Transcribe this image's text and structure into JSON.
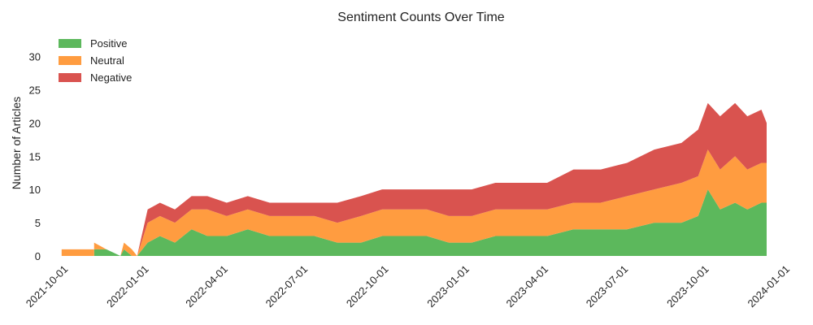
{
  "chart_data": {
    "type": "area",
    "stacked": true,
    "title": "Sentiment Counts Over Time",
    "xlabel": "",
    "ylabel": "Number of Articles",
    "x_range": [
      "2021-09-15",
      "2024-01-01"
    ],
    "ylim": [
      0,
      33
    ],
    "grid": false,
    "legend_position": "top-left",
    "x_ticks": [
      "2021-10-01",
      "2022-01-01",
      "2022-04-01",
      "2022-07-01",
      "2022-10-01",
      "2023-01-01",
      "2023-04-01",
      "2023-07-01",
      "2023-10-01",
      "2024-01-01"
    ],
    "y_ticks": [
      0,
      5,
      10,
      15,
      20,
      25,
      30
    ],
    "x_tick_rotation_deg": 45,
    "series": [
      {
        "name": "Positive",
        "color": "#5cb85c",
        "points": [
          [
            "2021-09-25",
            0
          ],
          [
            "2021-11-01",
            0
          ],
          [
            "2021-11-01",
            1
          ],
          [
            "2021-11-15",
            1
          ],
          [
            "2021-12-01",
            0
          ],
          [
            "2021-12-05",
            1
          ],
          [
            "2021-12-14",
            0
          ],
          [
            "2021-12-20",
            0
          ],
          [
            "2022-01-01",
            2
          ],
          [
            "2022-01-15",
            3
          ],
          [
            "2022-02-01",
            2
          ],
          [
            "2022-02-20",
            4
          ],
          [
            "2022-03-10",
            3
          ],
          [
            "2022-04-01",
            3
          ],
          [
            "2022-04-25",
            4
          ],
          [
            "2022-05-20",
            3
          ],
          [
            "2022-06-15",
            3
          ],
          [
            "2022-07-10",
            3
          ],
          [
            "2022-08-05",
            2
          ],
          [
            "2022-09-01",
            2
          ],
          [
            "2022-09-25",
            3
          ],
          [
            "2022-10-20",
            3
          ],
          [
            "2022-11-15",
            3
          ],
          [
            "2022-12-10",
            2
          ],
          [
            "2023-01-05",
            2
          ],
          [
            "2023-02-01",
            3
          ],
          [
            "2023-03-01",
            3
          ],
          [
            "2023-04-01",
            3
          ],
          [
            "2023-05-01",
            4
          ],
          [
            "2023-06-01",
            4
          ],
          [
            "2023-07-01",
            4
          ],
          [
            "2023-08-01",
            5
          ],
          [
            "2023-09-01",
            5
          ],
          [
            "2023-09-20",
            6
          ],
          [
            "2023-10-01",
            10
          ],
          [
            "2023-10-15",
            7
          ],
          [
            "2023-11-01",
            8
          ],
          [
            "2023-11-15",
            7
          ],
          [
            "2023-12-01",
            8
          ],
          [
            "2023-12-07",
            8
          ]
        ]
      },
      {
        "name": "Neutral",
        "color": "#ff9c40",
        "points": [
          [
            "2021-09-25",
            1
          ],
          [
            "2021-11-01",
            1
          ],
          [
            "2021-11-01",
            1
          ],
          [
            "2021-11-15",
            0
          ],
          [
            "2021-12-01",
            0
          ],
          [
            "2021-12-05",
            1
          ],
          [
            "2021-12-14",
            1
          ],
          [
            "2021-12-20",
            0
          ],
          [
            "2022-01-01",
            3
          ],
          [
            "2022-01-15",
            3
          ],
          [
            "2022-02-01",
            3
          ],
          [
            "2022-02-20",
            3
          ],
          [
            "2022-03-10",
            4
          ],
          [
            "2022-04-01",
            3
          ],
          [
            "2022-04-25",
            3
          ],
          [
            "2022-05-20",
            3
          ],
          [
            "2022-06-15",
            3
          ],
          [
            "2022-07-10",
            3
          ],
          [
            "2022-08-05",
            3
          ],
          [
            "2022-09-01",
            4
          ],
          [
            "2022-09-25",
            4
          ],
          [
            "2022-10-20",
            4
          ],
          [
            "2022-11-15",
            4
          ],
          [
            "2022-12-10",
            4
          ],
          [
            "2023-01-05",
            4
          ],
          [
            "2023-02-01",
            4
          ],
          [
            "2023-03-01",
            4
          ],
          [
            "2023-04-01",
            4
          ],
          [
            "2023-05-01",
            4
          ],
          [
            "2023-06-01",
            4
          ],
          [
            "2023-07-01",
            5
          ],
          [
            "2023-08-01",
            5
          ],
          [
            "2023-09-01",
            6
          ],
          [
            "2023-09-20",
            6
          ],
          [
            "2023-10-01",
            6
          ],
          [
            "2023-10-15",
            6
          ],
          [
            "2023-11-01",
            7
          ],
          [
            "2023-11-15",
            6
          ],
          [
            "2023-12-01",
            6
          ],
          [
            "2023-12-07",
            6
          ]
        ]
      },
      {
        "name": "Negative",
        "color": "#d9534f",
        "points": [
          [
            "2021-09-25",
            0
          ],
          [
            "2021-11-01",
            0
          ],
          [
            "2021-11-01",
            0
          ],
          [
            "2021-11-15",
            0
          ],
          [
            "2021-12-01",
            0
          ],
          [
            "2021-12-05",
            0
          ],
          [
            "2021-12-14",
            0
          ],
          [
            "2021-12-20",
            0
          ],
          [
            "2022-01-01",
            2
          ],
          [
            "2022-01-15",
            2
          ],
          [
            "2022-02-01",
            2
          ],
          [
            "2022-02-20",
            2
          ],
          [
            "2022-03-10",
            2
          ],
          [
            "2022-04-01",
            2
          ],
          [
            "2022-04-25",
            2
          ],
          [
            "2022-05-20",
            2
          ],
          [
            "2022-06-15",
            2
          ],
          [
            "2022-07-10",
            2
          ],
          [
            "2022-08-05",
            3
          ],
          [
            "2022-09-01",
            3
          ],
          [
            "2022-09-25",
            3
          ],
          [
            "2022-10-20",
            3
          ],
          [
            "2022-11-15",
            3
          ],
          [
            "2022-12-10",
            4
          ],
          [
            "2023-01-05",
            4
          ],
          [
            "2023-02-01",
            4
          ],
          [
            "2023-03-01",
            4
          ],
          [
            "2023-04-01",
            4
          ],
          [
            "2023-05-01",
            5
          ],
          [
            "2023-06-01",
            5
          ],
          [
            "2023-07-01",
            5
          ],
          [
            "2023-08-01",
            6
          ],
          [
            "2023-09-01",
            6
          ],
          [
            "2023-09-20",
            7
          ],
          [
            "2023-10-01",
            7
          ],
          [
            "2023-10-15",
            8
          ],
          [
            "2023-11-01",
            8
          ],
          [
            "2023-11-15",
            8
          ],
          [
            "2023-12-01",
            8
          ],
          [
            "2023-12-07",
            6
          ]
        ]
      }
    ]
  }
}
